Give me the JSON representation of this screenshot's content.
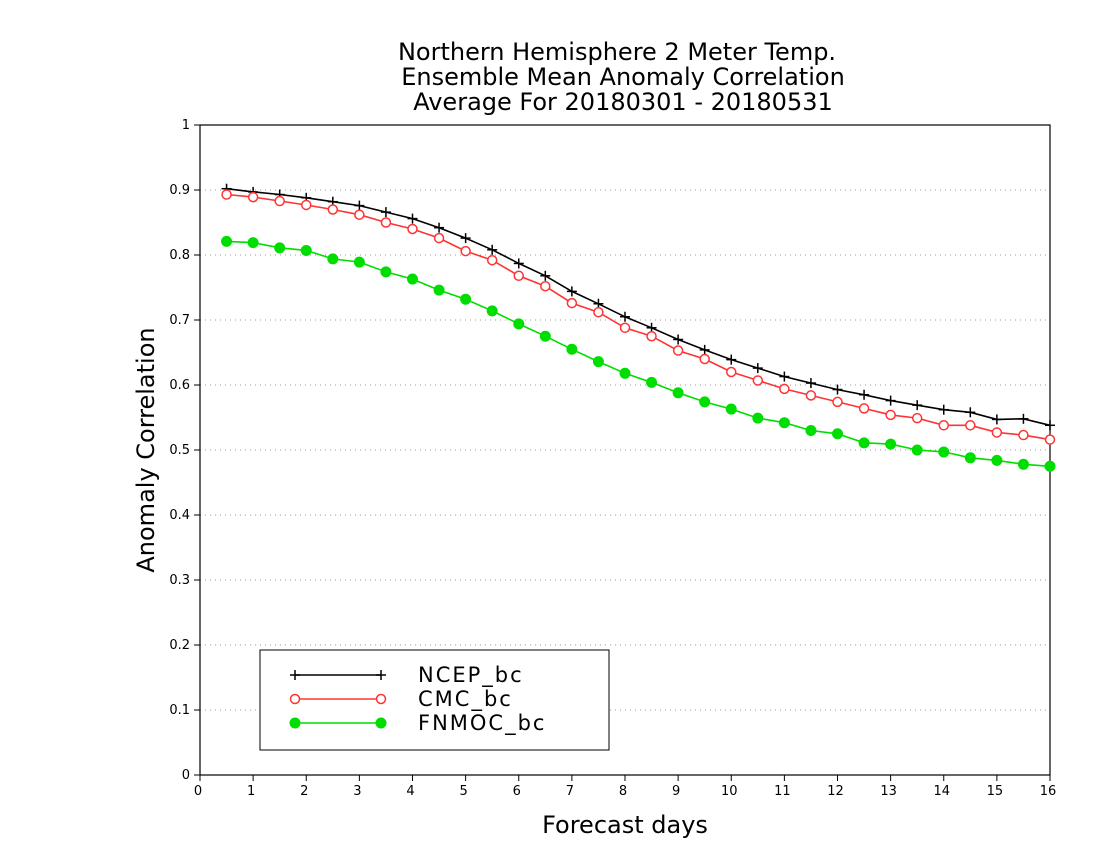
{
  "chart_data": {
    "type": "line",
    "title_lines": [
      "Northern Hemisphere 2 Meter Temp.",
      "Ensemble Mean Anomaly Correlation",
      "Average For 20180301 - 20180531"
    ],
    "xlabel": "Forecast days",
    "ylabel": "Anomaly Correlation",
    "xlim": [
      0,
      16
    ],
    "ylim": [
      0,
      1
    ],
    "x_ticks": [
      "0",
      "1",
      "2",
      "3",
      "4",
      "5",
      "6",
      "7",
      "8",
      "9",
      "10",
      "11",
      "12",
      "13",
      "14",
      "15",
      "16"
    ],
    "y_ticks": [
      "0",
      "0.1",
      "0.2",
      "0.3",
      "0.4",
      "0.5",
      "0.6",
      "0.7",
      "0.8",
      "0.9",
      "1"
    ],
    "grid": "dotted horizontal",
    "legend_position": "bottom-left",
    "x": [
      0.5,
      1,
      1.5,
      2,
      2.5,
      3,
      3.5,
      4,
      4.5,
      5,
      5.5,
      6,
      6.5,
      7,
      7.5,
      8,
      8.5,
      9,
      9.5,
      10,
      10.5,
      11,
      11.5,
      12,
      12.5,
      13,
      13.5,
      14,
      14.5,
      15,
      15.5,
      16
    ],
    "series": [
      {
        "name": "NCEP_bc",
        "color": "#000000",
        "marker": "plus",
        "values": [
          0.902,
          0.897,
          0.893,
          0.888,
          0.882,
          0.876,
          0.866,
          0.856,
          0.842,
          0.826,
          0.808,
          0.787,
          0.768,
          0.744,
          0.725,
          0.705,
          0.688,
          0.67,
          0.654,
          0.639,
          0.626,
          0.613,
          0.603,
          0.593,
          0.585,
          0.576,
          0.569,
          0.562,
          0.558,
          0.547,
          0.548,
          0.538
        ]
      },
      {
        "name": "CMC_bc",
        "color": "#ff3333",
        "marker": "open-circle",
        "values": [
          0.893,
          0.889,
          0.883,
          0.877,
          0.87,
          0.862,
          0.85,
          0.84,
          0.826,
          0.806,
          0.792,
          0.768,
          0.752,
          0.726,
          0.712,
          0.688,
          0.675,
          0.653,
          0.64,
          0.62,
          0.607,
          0.594,
          0.584,
          0.574,
          0.564,
          0.554,
          0.549,
          0.538,
          0.538,
          0.527,
          0.523,
          0.516
        ]
      },
      {
        "name": "FNMOC_bc",
        "color": "#00dd00",
        "marker": "filled-circle",
        "values": [
          0.821,
          0.819,
          0.811,
          0.807,
          0.794,
          0.789,
          0.774,
          0.763,
          0.746,
          0.732,
          0.714,
          0.694,
          0.675,
          0.655,
          0.636,
          0.618,
          0.604,
          0.588,
          0.574,
          0.563,
          0.549,
          0.542,
          0.53,
          0.525,
          0.511,
          0.509,
          0.5,
          0.497,
          0.488,
          0.484,
          0.478,
          0.475
        ]
      }
    ]
  }
}
